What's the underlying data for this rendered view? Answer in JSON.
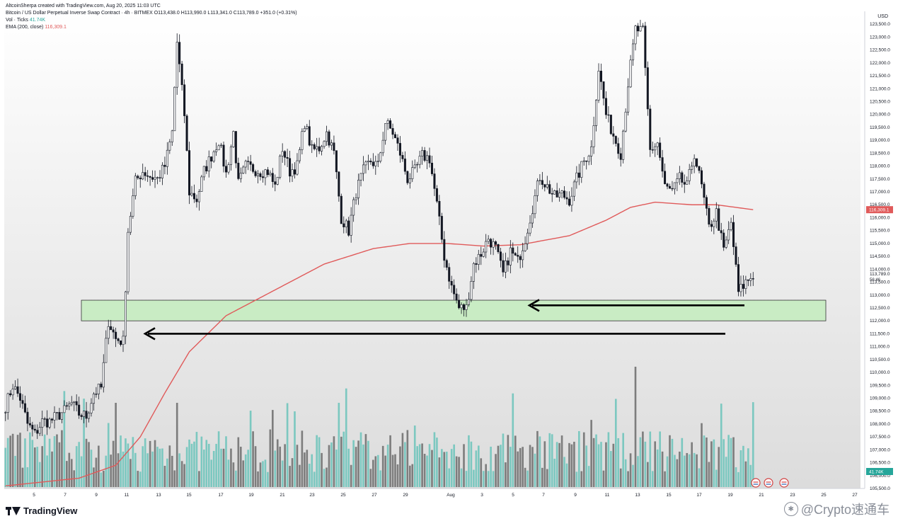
{
  "header": {
    "credit": "AltcoinSherpa created with TradingView.com, Aug 20, 2025 11:03 UTC",
    "symbol": "Bitcoin / US Dollar Perpetual Inverse Swap Contract · 4h · BITMEX",
    "ohlc": "O113,438.0  H113,990.0  L113,341.0  C113,789.0  +351.0 (+0.31%)",
    "vol_label": "Vol · Ticks",
    "vol_value": "41.74K",
    "ema_label": "EMA (200, close)",
    "ema_value": "116,309.1"
  },
  "axis": {
    "currency": "USD",
    "price_labels": [
      "123,500.0",
      "123,000.0",
      "122,500.0",
      "122,000.0",
      "121,500.0",
      "121,000.0",
      "120,500.0",
      "120,000.0",
      "119,500.0",
      "119,000.0",
      "118,500.0",
      "118,000.0",
      "117,500.0",
      "117,000.0",
      "116,500.0",
      "116,000.0",
      "115,500.0",
      "115,000.0",
      "114,500.0",
      "114,000.0",
      "113,500.0",
      "113,000.0",
      "112,500.0",
      "112,000.0",
      "111,500.0",
      "111,000.0",
      "110,500.0",
      "110,000.0",
      "109,500.0",
      "109,000.0",
      "108,500.0",
      "108,000.0",
      "107,500.0",
      "107,000.0",
      "106,500.0",
      "106,000.0",
      "105,500.0"
    ],
    "date_labels": [
      "5",
      "7",
      "9",
      "11",
      "13",
      "15",
      "17",
      "19",
      "21",
      "23",
      "25",
      "27",
      "29",
      "Aug",
      "3",
      "5",
      "7",
      "9",
      "11",
      "13",
      "15",
      "17",
      "19",
      "21",
      "23",
      "25",
      "27"
    ],
    "last_price": "113,789.0",
    "countdown": "56:46",
    "ema_tag": "116,309.1",
    "vol_tag": "41.74K"
  },
  "brand": {
    "name": "TradingView"
  },
  "watermark": {
    "text": "@Crypto速通车"
  },
  "colors": {
    "candle": "#131722",
    "ema": "#e05a5a",
    "vol_up": "#7cc8c0",
    "vol_down": "#7d7d7d",
    "zone_fill": "#c9ecc4",
    "zone_stroke": "#333333"
  },
  "chart_data": {
    "type": "candlestick",
    "timeframe": "4h",
    "ylim": [
      105500,
      124000
    ],
    "x_ticks": [
      "5",
      "7",
      "9",
      "11",
      "13",
      "15",
      "17",
      "19",
      "21",
      "23",
      "25",
      "27",
      "29",
      "Aug",
      "3",
      "5",
      "7",
      "9",
      "11",
      "13",
      "15",
      "17",
      "19",
      "21",
      "23",
      "25",
      "27"
    ],
    "price_path": [
      [
        0,
        108700
      ],
      [
        3,
        109500
      ],
      [
        6,
        109000
      ],
      [
        9,
        108000
      ],
      [
        12,
        107600
      ],
      [
        15,
        108100
      ],
      [
        18,
        108100
      ],
      [
        21,
        108300
      ],
      [
        24,
        108500
      ],
      [
        27,
        108800
      ],
      [
        30,
        108400
      ],
      [
        33,
        108300
      ],
      [
        36,
        109200
      ],
      [
        39,
        109400
      ],
      [
        42,
        112000
      ],
      [
        45,
        111300
      ],
      [
        48,
        111200
      ],
      [
        50,
        115500
      ],
      [
        53,
        117400
      ],
      [
        56,
        117800
      ],
      [
        59,
        117600
      ],
      [
        62,
        117500
      ],
      [
        65,
        118000
      ],
      [
        68,
        119300
      ],
      [
        70,
        122800
      ],
      [
        73,
        120000
      ],
      [
        75,
        117000
      ],
      [
        78,
        116700
      ],
      [
        81,
        117800
      ],
      [
        84,
        118400
      ],
      [
        87,
        119000
      ],
      [
        90,
        117700
      ],
      [
        93,
        119300
      ],
      [
        95,
        117300
      ],
      [
        98,
        118000
      ],
      [
        101,
        117900
      ],
      [
        104,
        117800
      ],
      [
        107,
        117800
      ],
      [
        110,
        117200
      ],
      [
        113,
        118700
      ],
      [
        116,
        117800
      ],
      [
        119,
        118000
      ],
      [
        122,
        119700
      ],
      [
        125,
        118600
      ],
      [
        128,
        118700
      ],
      [
        131,
        119300
      ],
      [
        134,
        118500
      ],
      [
        137,
        116000
      ],
      [
        140,
        115500
      ],
      [
        143,
        117000
      ],
      [
        146,
        117800
      ],
      [
        149,
        118200
      ],
      [
        152,
        118000
      ],
      [
        155,
        119700
      ],
      [
        158,
        119300
      ],
      [
        161,
        118500
      ],
      [
        164,
        117500
      ],
      [
        167,
        117800
      ],
      [
        170,
        118400
      ],
      [
        173,
        118300
      ],
      [
        176,
        116500
      ],
      [
        179,
        114500
      ],
      [
        182,
        113300
      ],
      [
        185,
        112500
      ],
      [
        188,
        112500
      ],
      [
        191,
        114200
      ],
      [
        194,
        114600
      ],
      [
        197,
        115200
      ],
      [
        200,
        114800
      ],
      [
        203,
        113800
      ],
      [
        206,
        114700
      ],
      [
        209,
        114300
      ],
      [
        212,
        115200
      ],
      [
        215,
        116400
      ],
      [
        218,
        117600
      ],
      [
        221,
        117200
      ],
      [
        224,
        116800
      ],
      [
        227,
        116900
      ],
      [
        230,
        116700
      ],
      [
        233,
        117500
      ],
      [
        236,
        118200
      ],
      [
        239,
        118700
      ],
      [
        242,
        121800
      ],
      [
        245,
        120000
      ],
      [
        248,
        119200
      ],
      [
        251,
        118500
      ],
      [
        254,
        121200
      ],
      [
        257,
        123300
      ],
      [
        260,
        123200
      ],
      [
        263,
        118600
      ],
      [
        266,
        118900
      ],
      [
        269,
        117200
      ],
      [
        272,
        117000
      ],
      [
        275,
        117500
      ],
      [
        278,
        117200
      ],
      [
        281,
        118500
      ],
      [
        284,
        117200
      ],
      [
        287,
        115600
      ],
      [
        290,
        116200
      ],
      [
        293,
        114700
      ],
      [
        296,
        115800
      ],
      [
        299,
        113100
      ],
      [
        302,
        113500
      ],
      [
        305,
        113789
      ]
    ],
    "ema_200": [
      [
        0,
        105600
      ],
      [
        30,
        105900
      ],
      [
        45,
        106400
      ],
      [
        55,
        107500
      ],
      [
        65,
        109200
      ],
      [
        75,
        110800
      ],
      [
        90,
        112200
      ],
      [
        110,
        113200
      ],
      [
        130,
        114200
      ],
      [
        150,
        114800
      ],
      [
        165,
        115000
      ],
      [
        180,
        115000
      ],
      [
        195,
        114900
      ],
      [
        210,
        114950
      ],
      [
        230,
        115300
      ],
      [
        245,
        115900
      ],
      [
        255,
        116400
      ],
      [
        265,
        116600
      ],
      [
        280,
        116500
      ],
      [
        290,
        116500
      ],
      [
        305,
        116309
      ]
    ],
    "support_zone": {
      "low": 112000,
      "high": 112800
    },
    "arrows": [
      {
        "direction": "left",
        "price": 112600
      },
      {
        "direction": "left",
        "price": 111500
      }
    ],
    "volume_ymax": 10000
  }
}
